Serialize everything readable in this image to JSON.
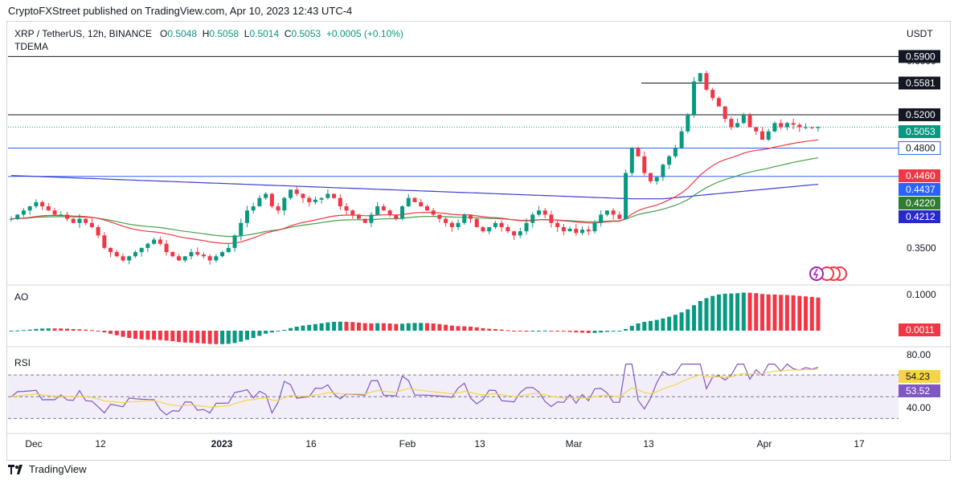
{
  "header": {
    "publisher": "CryptoFXStreet published on TradingView.com, Apr 10, 2023 12:43 UTC-4"
  },
  "legend": {
    "symbol": "XRP / TetherUS, 12h, BINANCE",
    "open_label": "O",
    "open": "0.5048",
    "high_label": "H",
    "high": "0.5058",
    "low_label": "L",
    "low": "0.5014",
    "close_label": "C",
    "close": "0.5053",
    "change": "+0.0005 (+0.10%)",
    "indicator": "TDEMA",
    "currency": "USDT"
  },
  "colors": {
    "up": "#089981",
    "down": "#f23645",
    "ema_fast": "#f23645",
    "ema_mid": "#43a047",
    "ema_slow": "#3d3dcc",
    "rsi": "#7e57c2",
    "rsi_ma": "#f5d547",
    "hline": "#2962ff"
  },
  "chart_data": [
    {
      "type": "candlestick",
      "title": "XRP / TetherUS, 12h, BINANCE",
      "ylim": [
        0.33,
        0.6
      ],
      "y_ticks": [
        "0.6000",
        "0.3500"
      ],
      "x_ticks": [
        "Dec",
        "12",
        "2023",
        "16",
        "Feb",
        "13",
        "Mar",
        "13",
        "Apr",
        "17"
      ],
      "close_series": [
        0.395,
        0.4,
        0.405,
        0.41,
        0.415,
        0.41,
        0.405,
        0.4,
        0.4,
        0.395,
        0.39,
        0.395,
        0.39,
        0.385,
        0.375,
        0.36,
        0.355,
        0.35,
        0.345,
        0.35,
        0.355,
        0.36,
        0.365,
        0.37,
        0.365,
        0.355,
        0.35,
        0.345,
        0.35,
        0.355,
        0.352,
        0.35,
        0.345,
        0.35,
        0.355,
        0.36,
        0.375,
        0.39,
        0.405,
        0.41,
        0.42,
        0.425,
        0.41,
        0.405,
        0.42,
        0.43,
        0.425,
        0.42,
        0.415,
        0.418,
        0.42,
        0.425,
        0.42,
        0.41,
        0.405,
        0.4,
        0.395,
        0.39,
        0.4,
        0.41,
        0.405,
        0.4,
        0.395,
        0.41,
        0.42,
        0.415,
        0.41,
        0.405,
        0.4,
        0.395,
        0.39,
        0.385,
        0.39,
        0.4,
        0.395,
        0.385,
        0.38,
        0.385,
        0.39,
        0.385,
        0.38,
        0.375,
        0.38,
        0.39,
        0.4,
        0.405,
        0.4,
        0.39,
        0.385,
        0.38,
        0.383,
        0.378,
        0.382,
        0.38,
        0.39,
        0.4,
        0.405,
        0.4,
        0.395,
        0.45,
        0.48,
        0.47,
        0.45,
        0.44,
        0.445,
        0.46,
        0.47,
        0.48,
        0.5,
        0.52,
        0.56,
        0.57,
        0.55,
        0.54,
        0.53,
        0.515,
        0.505,
        0.51,
        0.52,
        0.505,
        0.5,
        0.49,
        0.5,
        0.51,
        0.505,
        0.51,
        0.508,
        0.505,
        0.505,
        0.504,
        0.5053
      ],
      "horizontal_levels": [
        {
          "value": 0.59,
          "label": "0.5900"
        },
        {
          "value": 0.5581,
          "label": "0.5581"
        },
        {
          "value": 0.52,
          "label": "0.5200"
        },
        {
          "value": 0.48,
          "label": "0.4800"
        },
        {
          "value": 0.446,
          "label": "0.4460"
        }
      ],
      "price_tags": [
        {
          "value": 0.5053,
          "label": "0.5053",
          "color": "#089981"
        },
        {
          "value": 0.446,
          "label": "0.4460",
          "color": "#f23645"
        },
        {
          "value": 0.4437,
          "label": "0.4437",
          "color": "#2962ff"
        },
        {
          "value": 0.422,
          "label": "0.4220",
          "color": "#2e7d32"
        },
        {
          "value": 0.4212,
          "label": "0.4212",
          "color": "#2929c9"
        }
      ]
    },
    {
      "type": "bar",
      "title": "AO",
      "ylim": [
        -0.04,
        0.11
      ],
      "y_ticks": [
        "0.1000"
      ],
      "last_value": "0.0011"
    },
    {
      "type": "line",
      "title": "RSI",
      "ylim": [
        20,
        90
      ],
      "y_ticks": [
        "80.00",
        "40.00"
      ],
      "bands": [
        70,
        50,
        30
      ],
      "rsi_value": "54.23",
      "rsi_ma_value": "53.52"
    }
  ]
}
